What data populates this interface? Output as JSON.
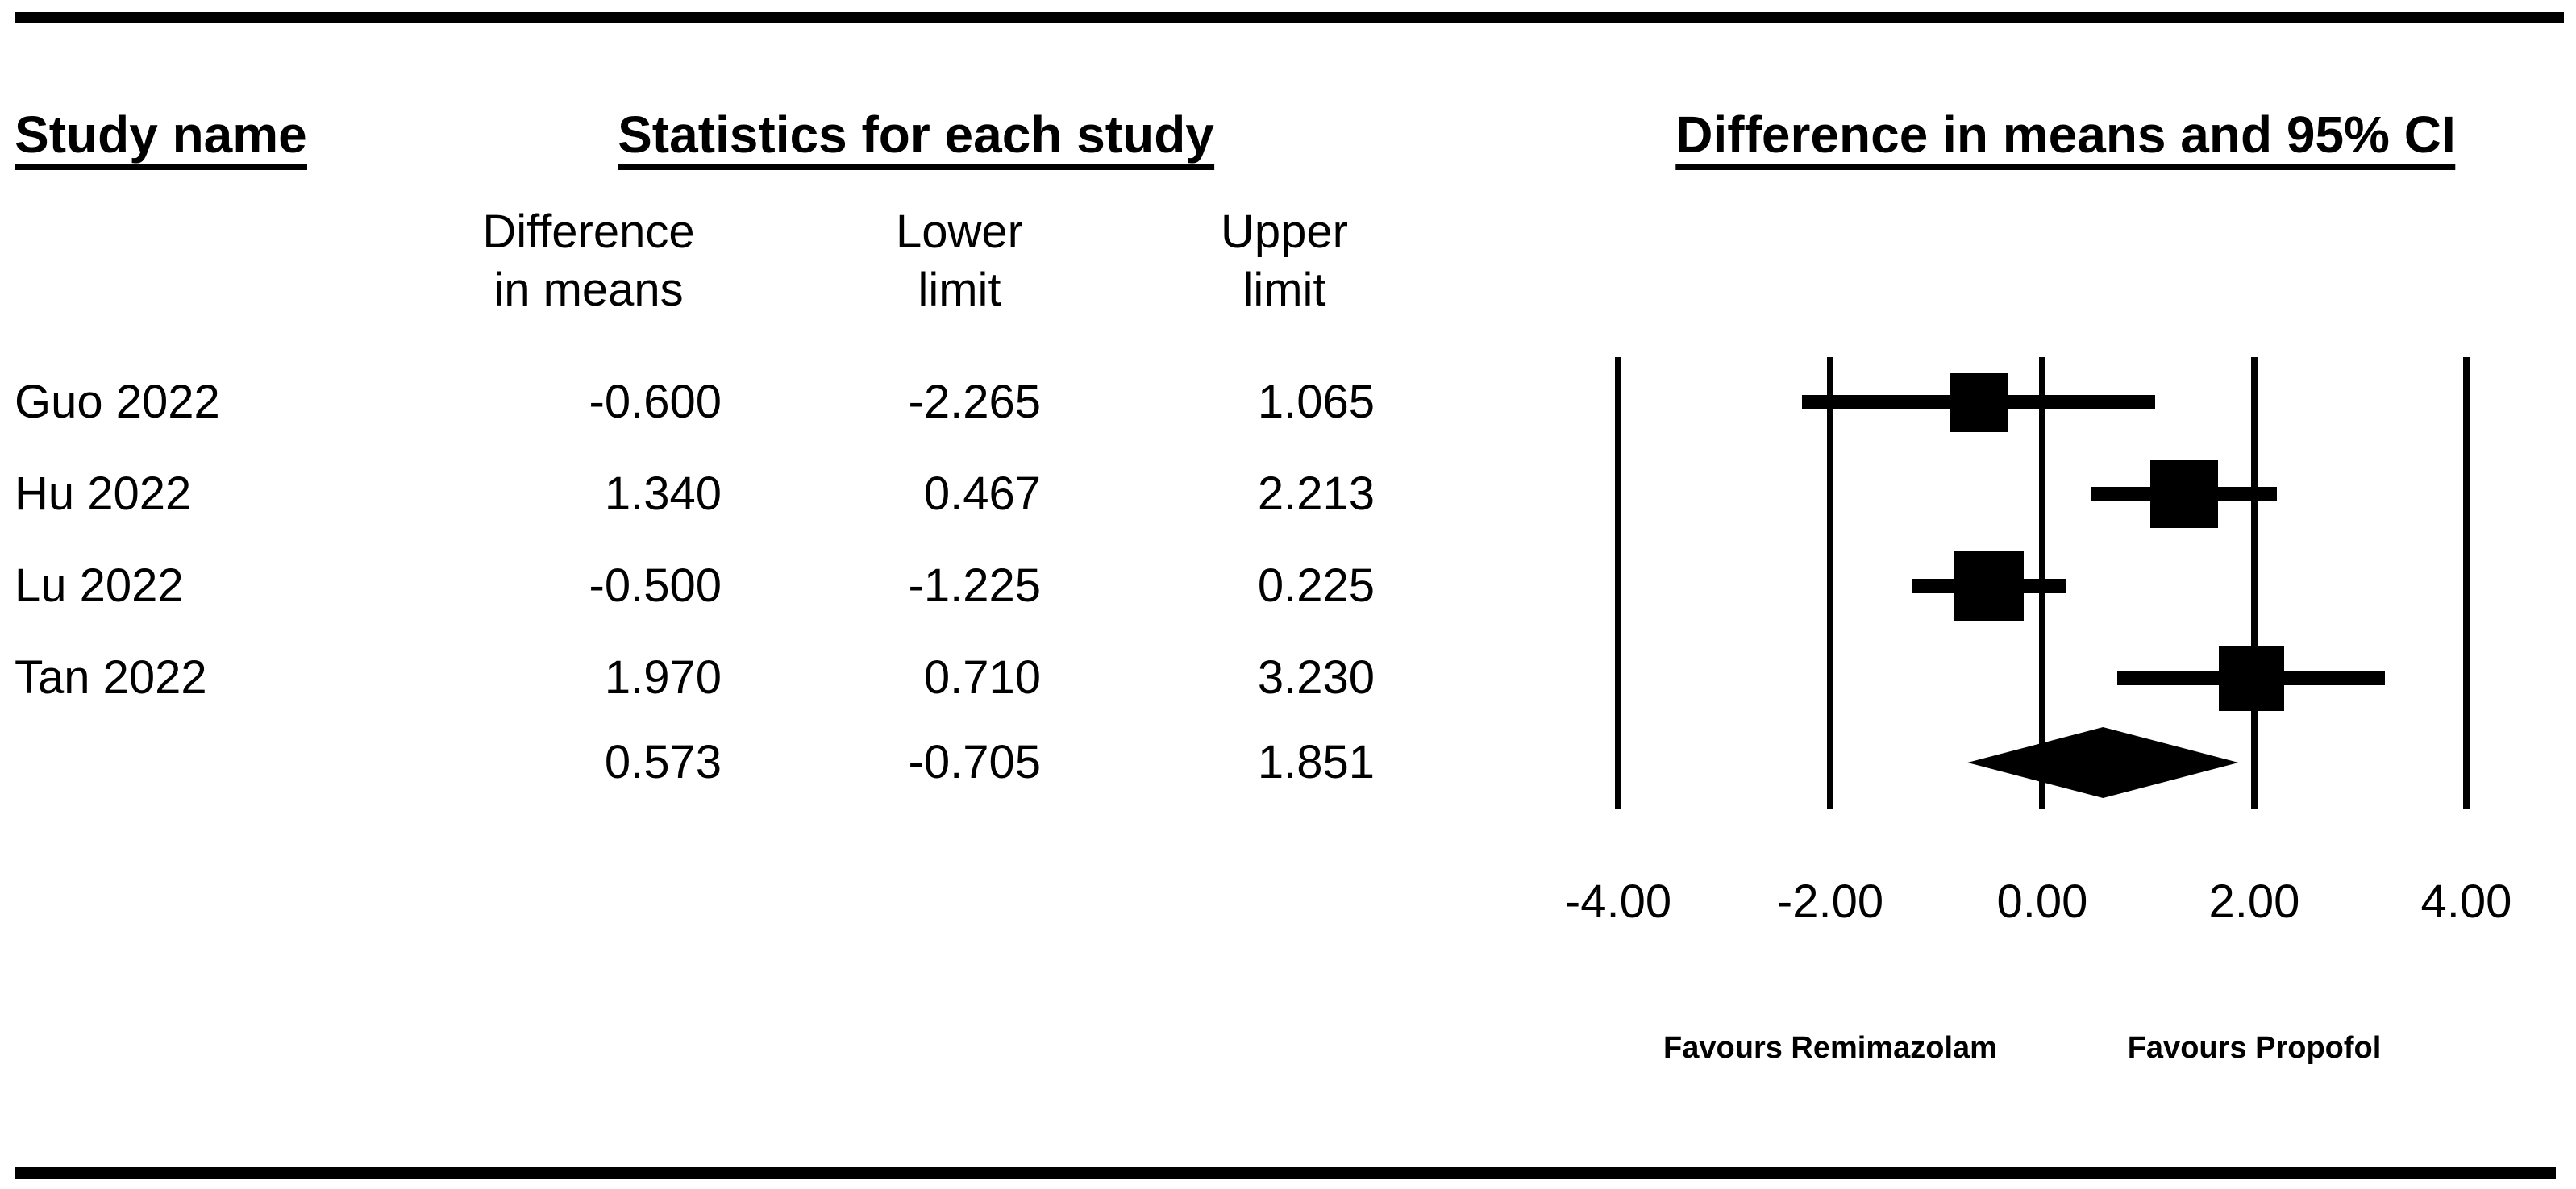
{
  "page": {
    "background": "#ffffff",
    "ink": "#000000"
  },
  "headers": {
    "study_name": "Study name",
    "statistics": "Statistics for each study",
    "plot_title": "Difference in means and 95% CI"
  },
  "stat_columns": [
    {
      "line1": "Difference",
      "line2": "in means"
    },
    {
      "line1": "Lower",
      "line2": "limit"
    },
    {
      "line1": "Upper",
      "line2": "limit"
    }
  ],
  "chart_data": {
    "type": "forest",
    "title": "Difference in means and 95% CI",
    "x_axis": {
      "min": -4,
      "max": 4,
      "tick_values": [
        -4,
        -2,
        0,
        2,
        4
      ],
      "tick_labels": [
        "-4.00",
        "-2.00",
        "0.00",
        "2.00",
        "4.00"
      ],
      "grid": true
    },
    "studies": [
      {
        "name": "Guo 2022",
        "difference_in_means": -0.6,
        "lower_limit": -2.265,
        "upper_limit": 1.065,
        "labels": {
          "mean": "-0.600",
          "lower": "-2.265",
          "upper": "1.065"
        },
        "marker_size_px": 73
      },
      {
        "name": "Hu 2022",
        "difference_in_means": 1.34,
        "lower_limit": 0.467,
        "upper_limit": 2.213,
        "labels": {
          "mean": "1.340",
          "lower": "0.467",
          "upper": "2.213"
        },
        "marker_size_px": 84
      },
      {
        "name": "Lu 2022",
        "difference_in_means": -0.5,
        "lower_limit": -1.225,
        "upper_limit": 0.225,
        "labels": {
          "mean": "-0.500",
          "lower": "-1.225",
          "upper": "0.225"
        },
        "marker_size_px": 86
      },
      {
        "name": "Tan 2022",
        "difference_in_means": 1.97,
        "lower_limit": 0.71,
        "upper_limit": 3.23,
        "labels": {
          "mean": "1.970",
          "lower": "0.710",
          "upper": "3.230"
        },
        "marker_size_px": 81
      }
    ],
    "overall": {
      "difference_in_means": 0.573,
      "lower_limit": -0.705,
      "upper_limit": 1.851,
      "labels": {
        "mean": "0.573",
        "lower": "-0.705",
        "upper": "1.851"
      },
      "marker": "diamond"
    },
    "footers": [
      {
        "label": "Favours Remimazolam",
        "anchor_value": -2
      },
      {
        "label": "Favours Propofol",
        "anchor_value": 2
      }
    ]
  }
}
